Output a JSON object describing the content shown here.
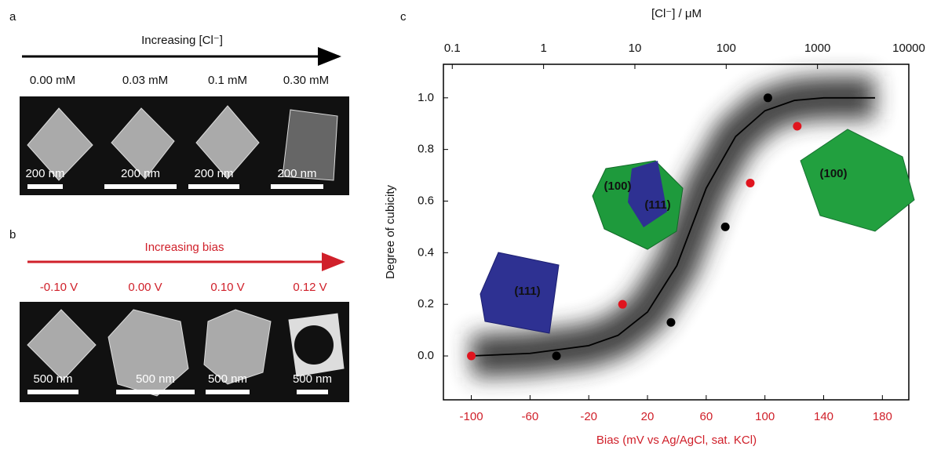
{
  "panel_a": {
    "label": "a",
    "title": "Increasing [Cl⁻]",
    "columns": [
      "0.00 mM",
      "0.03 mM",
      "0.1 mM",
      "0.30 mM"
    ],
    "scale_bars": [
      "200 nm",
      "200 nm",
      "200 nm",
      "200 nm"
    ]
  },
  "panel_b": {
    "label": "b",
    "title": "Increasing bias",
    "columns": [
      "-0.10 V",
      "0.00 V",
      "0.10 V",
      "0.12 V"
    ],
    "scale_bars": [
      "500 nm",
      "500 nm",
      "500 nm",
      "500 nm"
    ]
  },
  "chart_data": {
    "type": "scatter",
    "panel_label": "c",
    "xlabel": "Bias (mV vs Ag/AgCl, sat. KCl)",
    "ylabel": "Degree of cubicity",
    "x2label": "[Cl⁻] / μM",
    "xlim": [
      -119,
      198
    ],
    "xticks": [
      -100,
      -60,
      -20,
      20,
      60,
      100,
      140,
      180
    ],
    "xaxis_color": "#d0202a",
    "x2lim": [
      0.08,
      10000
    ],
    "x2ticks": [
      0.1,
      1,
      10,
      100,
      1000,
      10000
    ],
    "x2scale": "log",
    "ylim": [
      -0.17,
      1.13
    ],
    "yticks": [
      {
        "value": 0,
        "label": "0.0"
      },
      0.2,
      0.4,
      0.6,
      0.8,
      {
        "value": 1,
        "label": "1.0"
      }
    ],
    "series": [
      {
        "type": "scatter",
        "color": "#000000",
        "x": [
          -42,
          36,
          73,
          102
        ],
        "values": [
          0.0,
          0.13,
          0.5,
          1.0
        ]
      },
      {
        "type": "scatter",
        "color": "#e0141e",
        "x": [
          -100,
          3,
          90,
          122
        ],
        "values": [
          0.0,
          0.2,
          0.67,
          0.89
        ]
      },
      {
        "type": "line",
        "color": "#000000",
        "x": [
          -100,
          -60,
          -20,
          0,
          20,
          40,
          50,
          60,
          80,
          100,
          120,
          140,
          175
        ],
        "values": [
          0.0,
          0.01,
          0.04,
          0.08,
          0.17,
          0.35,
          0.5,
          0.65,
          0.85,
          0.95,
          0.99,
          1.0,
          1.0
        ]
      }
    ],
    "annotations": [
      "(111)",
      "(100)",
      "(111)",
      "(100)"
    ]
  }
}
